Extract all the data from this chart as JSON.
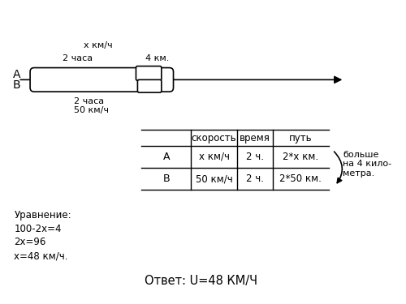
{
  "bg_color": "#ffffff",
  "diagram": {
    "A_label": "А",
    "B_label": "В",
    "label_x_kmh": "х км/ч",
    "label_2chasa_A": "2 часа",
    "label_4km": "4 км.",
    "label_2chasa_B": "2 часа",
    "label_50kmh": "50 км/ч"
  },
  "table": {
    "col_headers": [
      "скорость",
      "время",
      "путь"
    ],
    "row_labels": [
      "А",
      "В"
    ],
    "cell_data": [
      [
        "х км/ч",
        "2 ч.",
        "2*х км."
      ],
      [
        "50 км/ч",
        "2 ч.",
        "2*50 км."
      ]
    ],
    "side_note": "больше\nна 4 кило-\nметра."
  },
  "equation": {
    "lines": [
      "Уравнение:",
      "100-2х=4",
      "2х=96",
      "х=48 км/ч."
    ]
  },
  "answer": {
    "text": "Ответ: U=48 КМ/Ч"
  }
}
